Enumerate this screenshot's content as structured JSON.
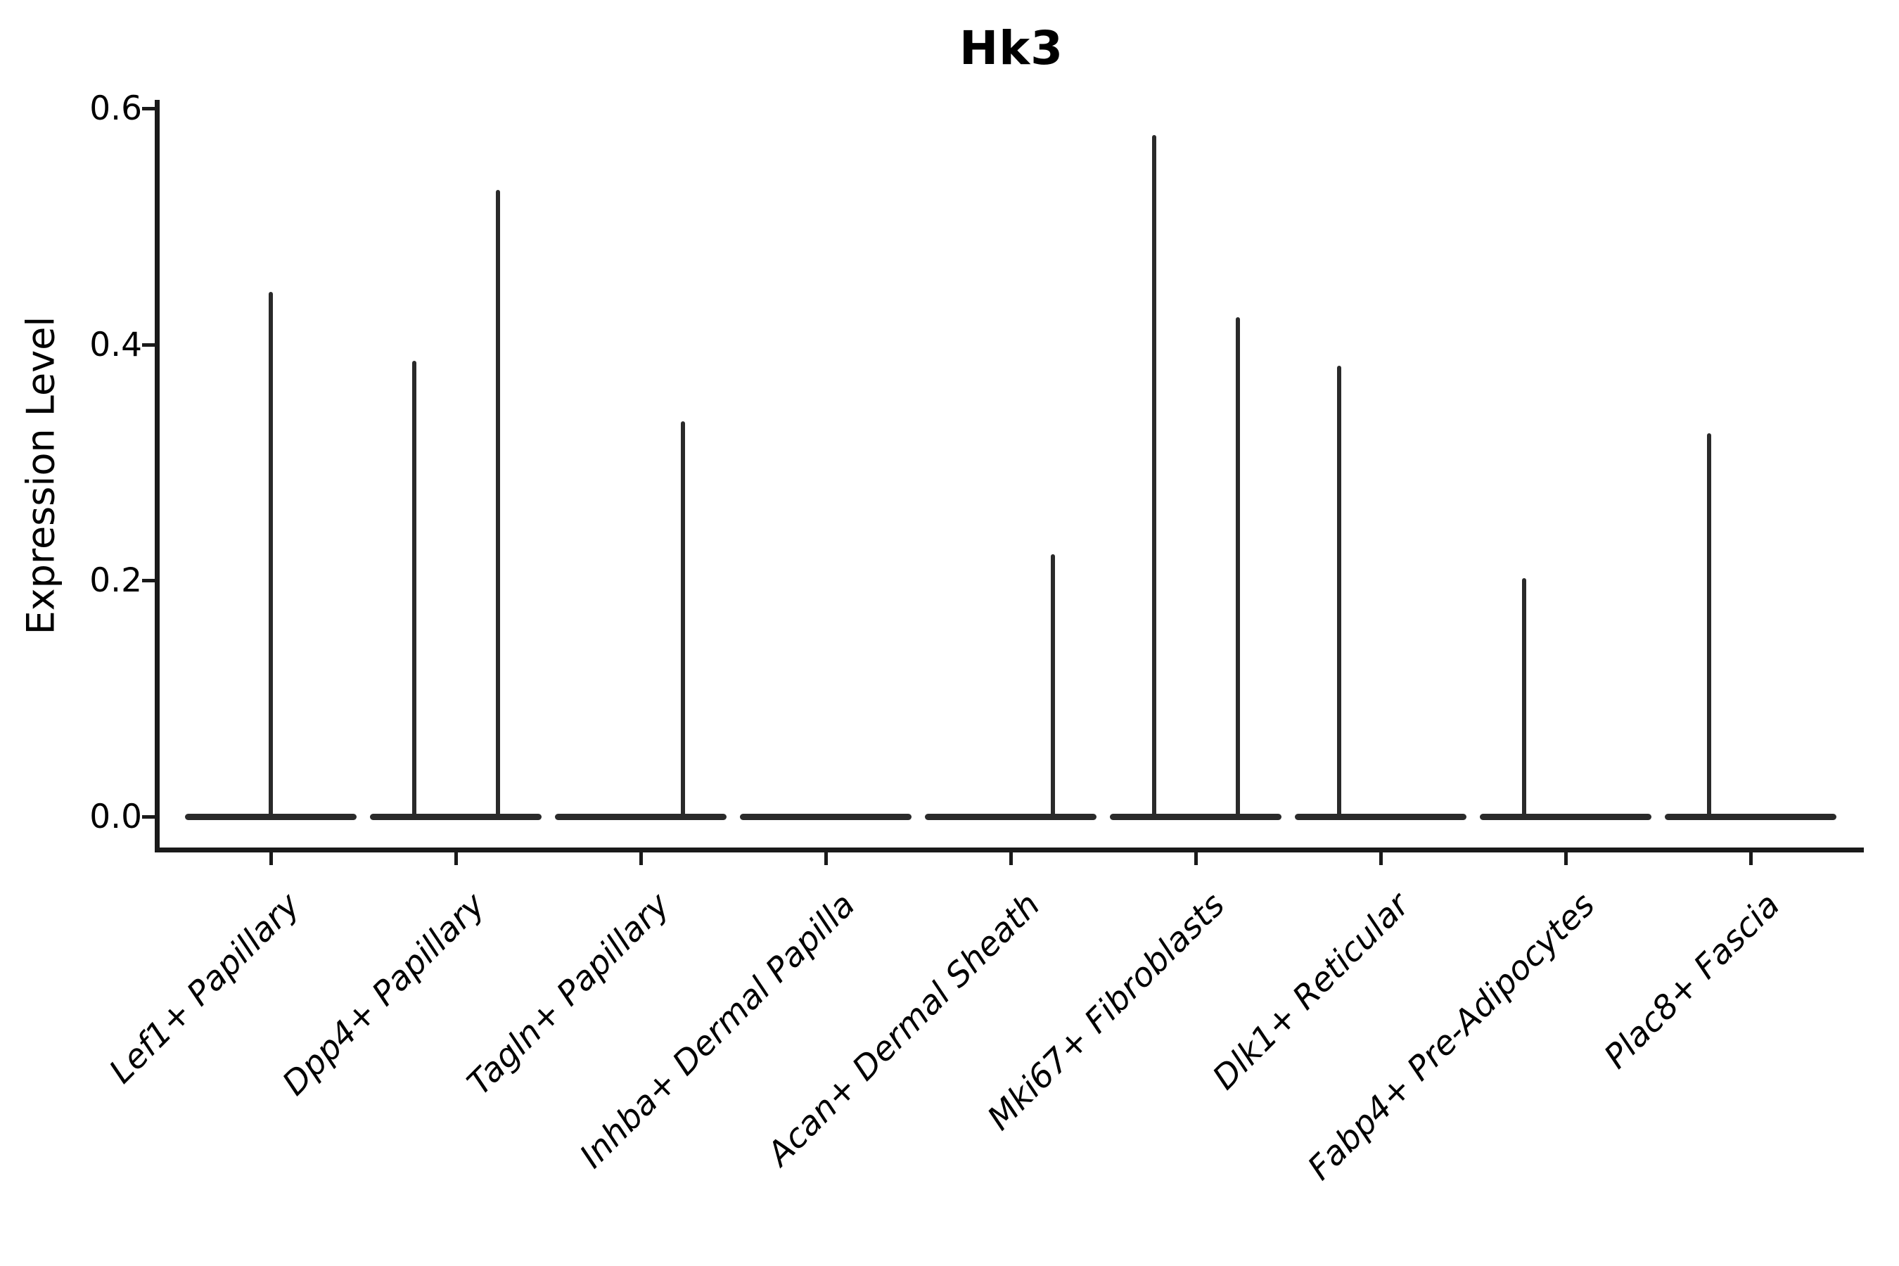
{
  "title": "Hk3",
  "ylabel": "Expression Level",
  "chart_data": {
    "type": "violin",
    "title": "Hk3",
    "xlabel": "",
    "ylabel": "Expression Level",
    "ylim": [
      0,
      0.6
    ],
    "grid": false,
    "legend": false,
    "line_color": "#2a2a2a",
    "y_ticks": [
      {
        "value": 0.0,
        "label": "0.0"
      },
      {
        "value": 0.2,
        "label": "0.2"
      },
      {
        "value": 0.4,
        "label": "0.4"
      },
      {
        "value": 0.6,
        "label": "0.6"
      }
    ],
    "categories": [
      "Lef1+ Papillary",
      "Dpp4+ Papillary",
      "Tagln+ Papillary",
      "Inhba+ Dermal Papilla",
      "Acan+ Dermal Sheath",
      "Mki67+ Fibroblasts",
      "Dlk1+ Reticular",
      "Fabp4+ Pre-Adipocytes",
      "Plac8+ Fascia"
    ],
    "violins": [
      {
        "category": "Lef1+ Papillary",
        "spikes": [
          {
            "pos": "center",
            "max": 0.447
          }
        ]
      },
      {
        "category": "Dpp4+ Papillary",
        "spikes": [
          {
            "pos": "left",
            "max": 0.388
          },
          {
            "pos": "right",
            "max": 0.533
          }
        ]
      },
      {
        "category": "Tagln+ Papillary",
        "spikes": [
          {
            "pos": "right",
            "max": 0.337
          }
        ]
      },
      {
        "category": "Inhba+ Dermal Papilla",
        "spikes": []
      },
      {
        "category": "Acan+ Dermal Sheath",
        "spikes": [
          {
            "pos": "right",
            "max": 0.224
          }
        ]
      },
      {
        "category": "Mki67+ Fibroblasts",
        "spikes": [
          {
            "pos": "left",
            "max": 0.58
          },
          {
            "pos": "right",
            "max": 0.425
          }
        ]
      },
      {
        "category": "Dlk1+ Reticular",
        "spikes": [
          {
            "pos": "left",
            "max": 0.384
          }
        ]
      },
      {
        "category": "Fabp4+ Pre-Adipocytes",
        "spikes": [
          {
            "pos": "left",
            "max": 0.204
          }
        ]
      },
      {
        "category": "Plac8+ Fascia",
        "spikes": [
          {
            "pos": "left",
            "max": 0.327
          }
        ]
      }
    ]
  }
}
